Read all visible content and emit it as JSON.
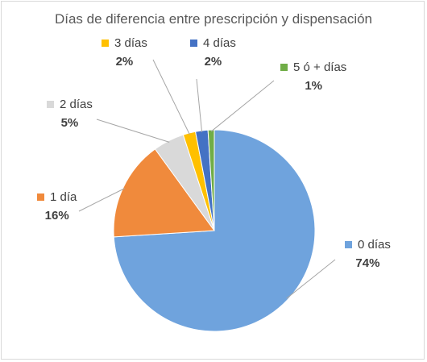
{
  "chart_data": {
    "type": "pie",
    "title": "Días de diferencia entre prescripción y dispensación",
    "categories": [
      "0 días",
      "1 día",
      "2 días",
      "3 días",
      "4 días",
      "5 ó + días"
    ],
    "values": [
      74,
      16,
      5,
      2,
      2,
      1
    ],
    "value_labels": [
      "74%",
      "16%",
      "5%",
      "2%",
      "2%",
      "1%"
    ],
    "colors": [
      "#6fa3dd",
      "#f08a3c",
      "#d9d9d9",
      "#ffc000",
      "#4472c4",
      "#70ad47"
    ],
    "legend": "none",
    "data_labels": "category and percentage, outside with leader lines"
  }
}
